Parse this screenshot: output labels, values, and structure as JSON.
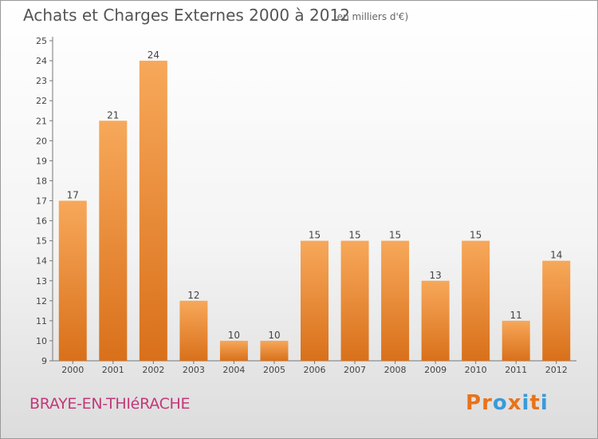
{
  "header": {
    "title": "Achats et Charges Externes 2000 à 2012",
    "subtitle": "(en milliers d'€)"
  },
  "footer": {
    "commune": "BRAYE-EN-THIéRACHE",
    "logo_text": "Proxiti"
  },
  "colors": {
    "bar_top": "#f7a85a",
    "bar_bottom": "#d9701a",
    "logo": [
      "#e8731a",
      "#e8731a",
      "#3a9ad9",
      "#e8731a",
      "#3a9ad9",
      "#e8731a",
      "#3a9ad9"
    ]
  },
  "chart_data": {
    "type": "bar",
    "title": "Achats et Charges Externes 2000 à 2012",
    "subtitle": "(en milliers d'€)",
    "categories": [
      "2000",
      "2001",
      "2002",
      "2003",
      "2004",
      "2005",
      "2006",
      "2007",
      "2008",
      "2009",
      "2010",
      "2011",
      "2012"
    ],
    "values": [
      17,
      21,
      24,
      12,
      10,
      10,
      15,
      15,
      15,
      13,
      15,
      11,
      14
    ],
    "data_labels": [
      "17",
      "21",
      "24",
      "12",
      "10",
      "10",
      "15",
      "15",
      "15",
      "13",
      "15",
      "11",
      "14"
    ],
    "y_tick_labels": [
      "9",
      "10",
      "11",
      "12",
      "13",
      "14",
      "15",
      "16",
      "17",
      "18",
      "19",
      "20",
      "21",
      "22",
      "23",
      "24",
      "25"
    ],
    "ylim": [
      9,
      25
    ],
    "xlabel": "",
    "ylabel": "",
    "grid": false,
    "legend": "none"
  }
}
